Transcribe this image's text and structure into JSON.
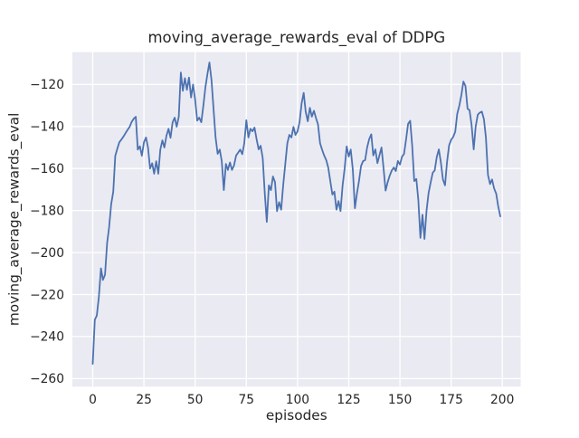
{
  "chart_data": {
    "type": "line",
    "title": "moving_average_rewards_eval of DDPG",
    "xlabel": "episodes",
    "ylabel": "moving_average_rewards_eval",
    "legend": null,
    "grid": true,
    "style": "seaborn-darkgrid",
    "colors": {
      "figure_background": "#ffffff",
      "axes_background": "#eaeaf2",
      "gridline": "#ffffff",
      "line": "#4c72b0",
      "text": "#262626"
    },
    "xlim": [
      -9.95,
      208.95
    ],
    "ylim": [
      -263.8,
      -104.6
    ],
    "x_ticks": [
      0,
      25,
      50,
      75,
      100,
      125,
      150,
      175,
      200
    ],
    "x_tick_labels": [
      "0",
      "25",
      "50",
      "75",
      "100",
      "125",
      "150",
      "175",
      "200"
    ],
    "y_ticks": [
      -260,
      -240,
      -220,
      -200,
      -180,
      -160,
      -140,
      -120
    ],
    "y_tick_labels": [
      "−260",
      "−240",
      "−220",
      "−200",
      "−180",
      "−160",
      "−140",
      "−120"
    ],
    "series": [
      {
        "name": "moving_average_rewards_eval",
        "x_start": 0,
        "x_step": 1,
        "values": [
          -253.0,
          -232.0,
          -230.0,
          -221.0,
          -207.5,
          -213.0,
          -210.5,
          -195.5,
          -188.0,
          -177.0,
          -171.0,
          -154.0,
          -150.5,
          -147.5,
          -146.2,
          -144.8,
          -143.2,
          -141.6,
          -140.2,
          -137.8,
          -136.3,
          -135.4,
          -151.0,
          -149.4,
          -153.9,
          -147.5,
          -145.2,
          -150.0,
          -160.0,
          -157.5,
          -162.5,
          -156.5,
          -162.5,
          -151.0,
          -146.6,
          -150.0,
          -144.4,
          -141.1,
          -145.4,
          -138.0,
          -135.8,
          -140.1,
          -135.4,
          -114.3,
          -123.0,
          -117.0,
          -122.5,
          -116.7,
          -126.2,
          -120.0,
          -127.2,
          -137.2,
          -135.8,
          -138.0,
          -130.0,
          -121.5,
          -115.0,
          -109.5,
          -118.0,
          -132.0,
          -145.2,
          -153.0,
          -151.0,
          -156.4,
          -170.3,
          -157.8,
          -160.7,
          -157.1,
          -160.7,
          -158.5,
          -153.8,
          -152.5,
          -151.0,
          -153.2,
          -148.0,
          -137.0,
          -145.2,
          -141.1,
          -142.3,
          -140.5,
          -146.0,
          -150.9,
          -149.2,
          -155.0,
          -172.0,
          -185.4,
          -168.0,
          -170.3,
          -163.8,
          -166.5,
          -180.3,
          -176.0,
          -179.6,
          -168.0,
          -158.0,
          -148.0,
          -144.0,
          -145.2,
          -140.2,
          -144.0,
          -142.3,
          -138.0,
          -129.0,
          -124.0,
          -133.0,
          -137.5,
          -131.1,
          -135.3,
          -132.5,
          -136.0,
          -139.0,
          -148.0,
          -151.0,
          -153.8,
          -156.0,
          -159.5,
          -166.0,
          -172.4,
          -171.0,
          -179.6,
          -175.5,
          -180.3,
          -168.0,
          -160.2,
          -149.5,
          -154.3,
          -151.0,
          -160.5,
          -178.9,
          -172.0,
          -166.0,
          -158.8,
          -156.5,
          -156.0,
          -150.0,
          -146.0,
          -143.7,
          -153.8,
          -150.9,
          -157.4,
          -153.8,
          -150.0,
          -160.0,
          -170.5,
          -166.5,
          -163.5,
          -161.0,
          -159.5,
          -161.2,
          -156.4,
          -158.1,
          -154.5,
          -153.0,
          -146.0,
          -138.7,
          -137.3,
          -149.0,
          -166.0,
          -165.0,
          -175.0,
          -193.0,
          -182.0,
          -193.5,
          -180.0,
          -171.5,
          -166.7,
          -162.0,
          -160.9,
          -154.5,
          -150.9,
          -157.0,
          -165.2,
          -168.0,
          -157.0,
          -149.0,
          -146.3,
          -145.0,
          -142.5,
          -134.0,
          -130.1,
          -125.0,
          -118.6,
          -120.7,
          -131.5,
          -132.2,
          -139.4,
          -150.9,
          -140.0,
          -134.4,
          -133.4,
          -132.9,
          -136.5,
          -145.2,
          -163.1,
          -167.4,
          -165.2,
          -169.5,
          -172.0,
          -178.0,
          -182.8
        ]
      }
    ]
  }
}
